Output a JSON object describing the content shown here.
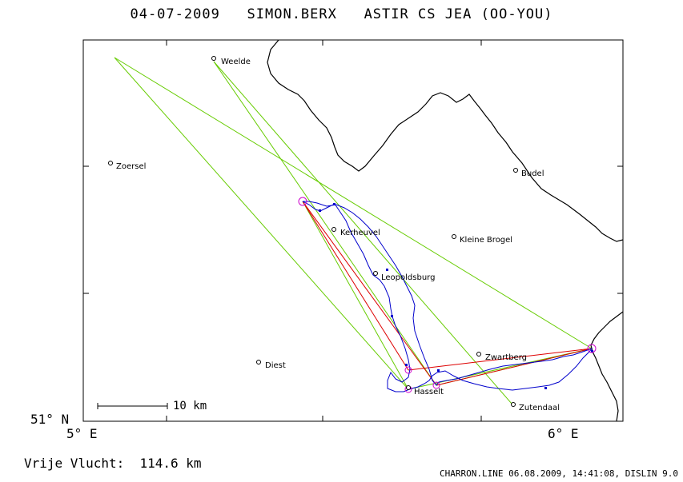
{
  "title": "04-07-2009   SIMON.BERX   ASTIR CS JEA (OO-YOU)",
  "axes": {
    "lat_label": "51° N",
    "lon_labels": [
      "5° E",
      "6° E"
    ]
  },
  "scale_bar": {
    "label": "10 km"
  },
  "footer": {
    "distance": "Vrije Vlucht:  114.6 km",
    "credits": "CHARRON.LINE 06.08.2009, 14:41:08, DISLIN 9.0"
  },
  "places": [
    {
      "id": "weelde",
      "name": "Weelde"
    },
    {
      "id": "zoersel",
      "name": "Zoersel"
    },
    {
      "id": "budel",
      "name": "Budel"
    },
    {
      "id": "kerheuvel",
      "name": "Kerheuvel"
    },
    {
      "id": "kleine-brogel",
      "name": "Kleine Brogel"
    },
    {
      "id": "leopoldsburg",
      "name": "Leopoldsburg"
    },
    {
      "id": "zwartberg",
      "name": "Zwartberg"
    },
    {
      "id": "diest",
      "name": "Diest"
    },
    {
      "id": "hasselt",
      "name": "Hasselt"
    },
    {
      "id": "zutendaal",
      "name": "Zutendaal"
    }
  ],
  "colors": {
    "border": "#000000",
    "track": "#0000cc",
    "task_lines": "#66cc00",
    "scored_route": "#dd0000",
    "turnpoints": "#cc00cc"
  }
}
